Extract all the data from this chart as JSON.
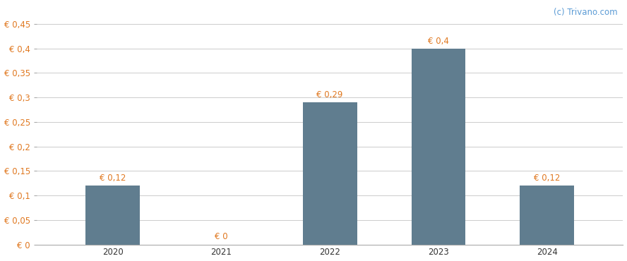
{
  "categories": [
    "2020",
    "2021",
    "2022",
    "2023",
    "2024"
  ],
  "values": [
    0.12,
    0.0,
    0.29,
    0.4,
    0.12
  ],
  "bar_color": "#607d8f",
  "bar_labels": [
    "€ 0,12",
    "€ 0",
    "€ 0,29",
    "€ 0,4",
    "€ 0,12"
  ],
  "yticks": [
    0,
    0.05,
    0.1,
    0.15,
    0.2,
    0.25,
    0.3,
    0.35,
    0.4,
    0.45
  ],
  "ytick_labels": [
    "€ 0",
    "€ 0,05",
    "€ 0,1",
    "€ 0,15",
    "€ 0,2",
    "€ 0,25",
    "€ 0,3",
    "€ 0,35",
    "€ 0,4",
    "€ 0,45"
  ],
  "ylim": [
    0,
    0.475
  ],
  "background_color": "#ffffff",
  "grid_color": "#cccccc",
  "axis_label_color": "#e07820",
  "watermark": "(c) Trivano.com",
  "watermark_color": "#5b9bd5",
  "bar_width": 0.5,
  "label_fontsize": 8.5,
  "tick_fontsize": 8.5,
  "watermark_fontsize": 8.5,
  "xtick_color": "#333333"
}
